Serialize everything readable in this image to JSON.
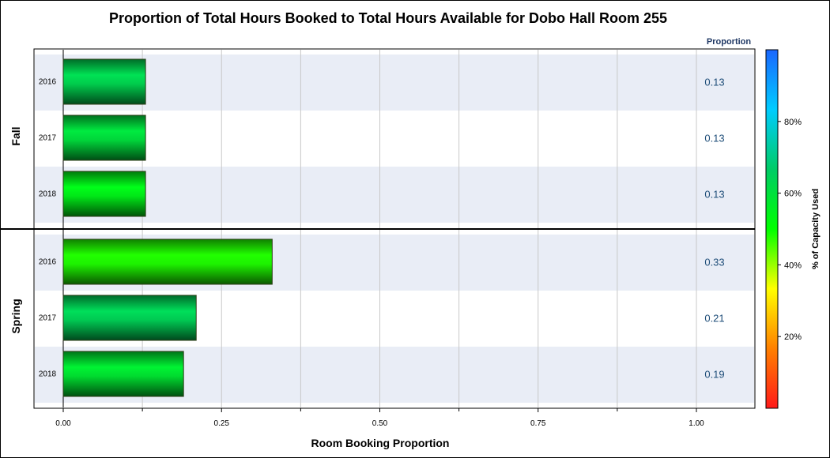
{
  "chart_data": {
    "type": "bar",
    "orientation": "horizontal",
    "title": "Proportion of Total Hours Booked to Total Hours Available for Dobo Hall Room 255",
    "xlabel": "Room Booking Proportion",
    "xlim": [
      0,
      1.0
    ],
    "xticks": [
      "0.00",
      "0.25",
      "0.50",
      "0.75",
      "1.00"
    ],
    "value_column_header": "Proportion",
    "grid": true,
    "panels": [
      {
        "name": "Fall",
        "rows": [
          {
            "year": "2016",
            "value": 0.13,
            "label": "0.13",
            "capacity_pct": 63
          },
          {
            "year": "2017",
            "value": 0.13,
            "label": "0.13",
            "capacity_pct": 60
          },
          {
            "year": "2018",
            "value": 0.13,
            "label": "0.13",
            "capacity_pct": 54
          }
        ]
      },
      {
        "name": "Spring",
        "rows": [
          {
            "year": "2016",
            "value": 0.33,
            "label": "0.33",
            "capacity_pct": 48
          },
          {
            "year": "2017",
            "value": 0.21,
            "label": "0.21",
            "capacity_pct": 64
          },
          {
            "year": "2018",
            "value": 0.19,
            "label": "0.19",
            "capacity_pct": 58
          }
        ]
      }
    ],
    "colorbar": {
      "title": "% of Capacity Used",
      "ticks": [
        "20%",
        "40%",
        "60%",
        "80%"
      ],
      "tick_values": [
        20,
        40,
        60,
        80
      ],
      "range": [
        0,
        100
      ],
      "colors": [
        "#ff1a1a",
        "#ff8000",
        "#ffff00",
        "#00ff00",
        "#00cc66",
        "#00ccff",
        "#1a66ff"
      ]
    }
  }
}
